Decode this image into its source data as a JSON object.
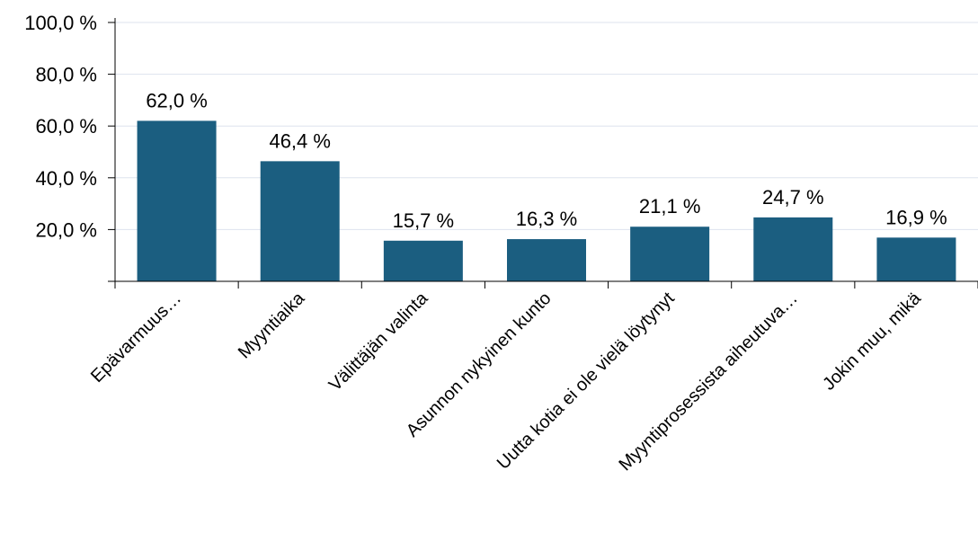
{
  "chart_data": {
    "type": "bar",
    "categories": [
      "Epävarmuus…",
      "Myyntiaika",
      "Välittäjän valinta",
      "Asunnon nykyinen kunto",
      "Uutta kotia ei ole vielä löytynyt",
      "Myyntiprosessista aiheutuva…",
      "Jokin muu, mikä"
    ],
    "values": [
      62.0,
      46.4,
      15.7,
      16.3,
      21.1,
      24.7,
      16.9
    ],
    "data_labels": [
      "62,0 %",
      "46,4 %",
      "15,7 %",
      "16,3 %",
      "21,1 %",
      "24,7 %",
      "16,9 %"
    ],
    "yticks": [
      20,
      40,
      60,
      80,
      100
    ],
    "ytick_labels": [
      "20,0 %",
      "40,0 %",
      "60,0 %",
      "80,0 %",
      "100,0 %"
    ],
    "ylim": [
      0,
      100
    ],
    "grid": true,
    "bar_color": "#1b5e80",
    "grid_color": "#dde3ee",
    "axis_color": "#000000"
  }
}
